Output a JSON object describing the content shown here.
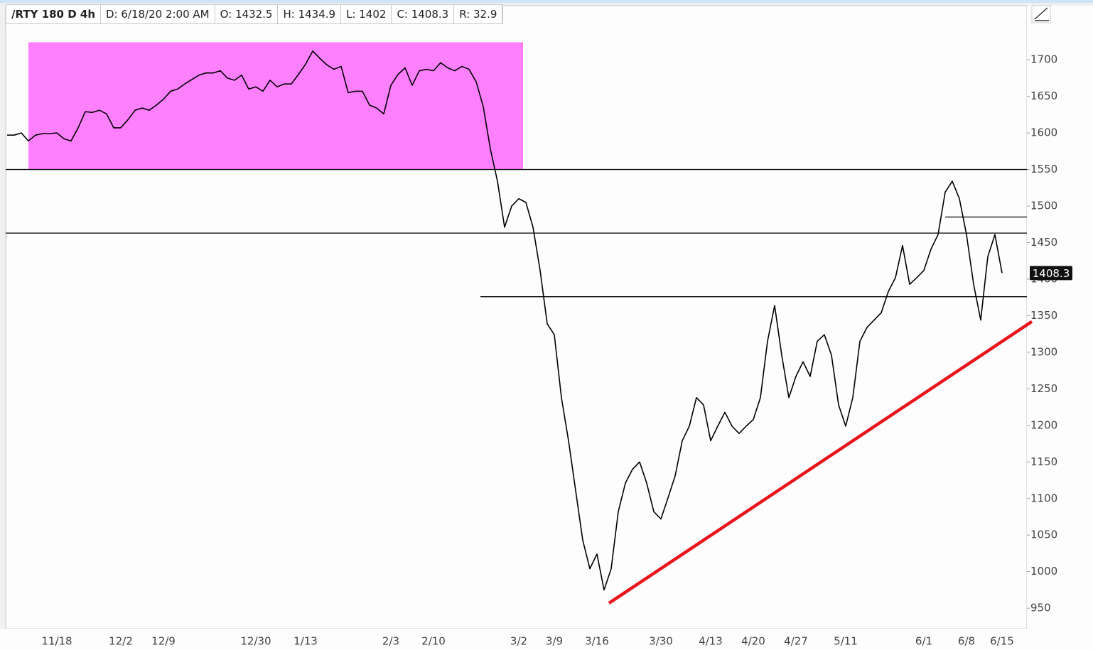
{
  "chart_data": {
    "type": "line",
    "header": [
      "/RTY 180 D 4h",
      "D: 6/18/20 2:00 AM",
      "O: 1432.5",
      "H: 1434.9",
      "L: 1402",
      "C: 1408.3",
      "R: 32.9"
    ],
    "categories": [
      null,
      null,
      null,
      null,
      null,
      null,
      null,
      "11/18",
      null,
      null,
      null,
      null,
      null,
      null,
      null,
      null,
      "12/2",
      null,
      null,
      null,
      null,
      null,
      "12/9",
      null,
      null,
      null,
      null,
      null,
      null,
      null,
      null,
      null,
      null,
      null,
      null,
      "12/30",
      null,
      null,
      null,
      null,
      null,
      null,
      "1/13",
      null,
      null,
      null,
      null,
      null,
      null,
      null,
      null,
      null,
      null,
      null,
      "2/3",
      null,
      null,
      null,
      null,
      null,
      "2/10",
      null,
      null,
      null,
      null,
      null,
      null,
      null,
      null,
      null,
      null,
      null,
      "3/2",
      null,
      null,
      null,
      null,
      "3/9",
      null,
      null,
      null,
      null,
      null,
      "3/16",
      null,
      null,
      null,
      null,
      null,
      null,
      null,
      null,
      "3/30",
      null,
      null,
      null,
      null,
      null,
      null,
      "4/13",
      null,
      null,
      null,
      null,
      null,
      "4/20",
      null,
      null,
      null,
      null,
      null,
      "4/27",
      null,
      null,
      null,
      null,
      null,
      null,
      "5/11",
      null,
      null,
      null,
      null,
      null,
      null,
      null,
      null,
      null,
      null,
      "6/1",
      null,
      null,
      null,
      null,
      null,
      "6/8",
      null,
      null,
      null,
      null,
      "6/15"
    ],
    "values": [
      1597,
      1597,
      1600,
      1589,
      1597,
      1599,
      1599,
      1600,
      1592,
      1589,
      1607,
      1629,
      1628,
      1631,
      1626,
      1607,
      1607,
      1618,
      1631,
      1634,
      1631,
      1638,
      1646,
      1657,
      1660,
      1667,
      1673,
      1679,
      1682,
      1682,
      1685,
      1675,
      1672,
      1679,
      1660,
      1663,
      1657,
      1672,
      1663,
      1667,
      1667,
      1680,
      1694,
      1712,
      1702,
      1693,
      1687,
      1691,
      1655,
      1657,
      1657,
      1638,
      1634,
      1626,
      1665,
      1680,
      1689,
      1665,
      1685,
      1687,
      1685,
      1696,
      1689,
      1685,
      1691,
      1687,
      1670,
      1636,
      1578,
      1534,
      1471,
      1500,
      1510,
      1505,
      1471,
      1412,
      1339,
      1324,
      1238,
      1179,
      1111,
      1043,
      1004,
      1024,
      975,
      1004,
      1082,
      1121,
      1140,
      1150,
      1121,
      1082,
      1072,
      1101,
      1131,
      1179,
      1199,
      1238,
      1228,
      1179,
      1199,
      1218,
      1199,
      1189,
      1199,
      1208,
      1238,
      1315,
      1364,
      1296,
      1238,
      1267,
      1287,
      1267,
      1315,
      1324,
      1296,
      1228,
      1199,
      1238,
      1315,
      1334,
      1344,
      1354,
      1383,
      1402,
      1446,
      1393,
      1402,
      1412,
      1441,
      1461,
      1519,
      1534,
      1510,
      1461,
      1393,
      1344,
      1431,
      1461,
      1408.3
    ],
    "color": "#000000",
    "ylim": [
      922,
      1774
    ],
    "yticks": [
      950,
      1000,
      1050,
      1100,
      1150,
      1200,
      1250,
      1300,
      1350,
      1400,
      1450,
      1500,
      1550,
      1600,
      1650,
      1700
    ],
    "zone": {
      "x": [
        3,
        72.6
      ],
      "y": [
        1550,
        1724
      ],
      "color": "#ff80ff"
    },
    "hlines": [
      {
        "value": 1550,
        "from": -0.2,
        "color": "#000000"
      },
      {
        "value": 1463,
        "from": -0.2,
        "color": "#000000"
      },
      {
        "value": 1376,
        "from": 66.6,
        "color": "#000000"
      },
      {
        "value": 1485,
        "from": 132,
        "color": "#000000"
      }
    ],
    "trendline": {
      "x": [
        84.7,
        144.2
      ],
      "y": [
        957,
        1342
      ],
      "color": "#e8141c"
    }
  }
}
